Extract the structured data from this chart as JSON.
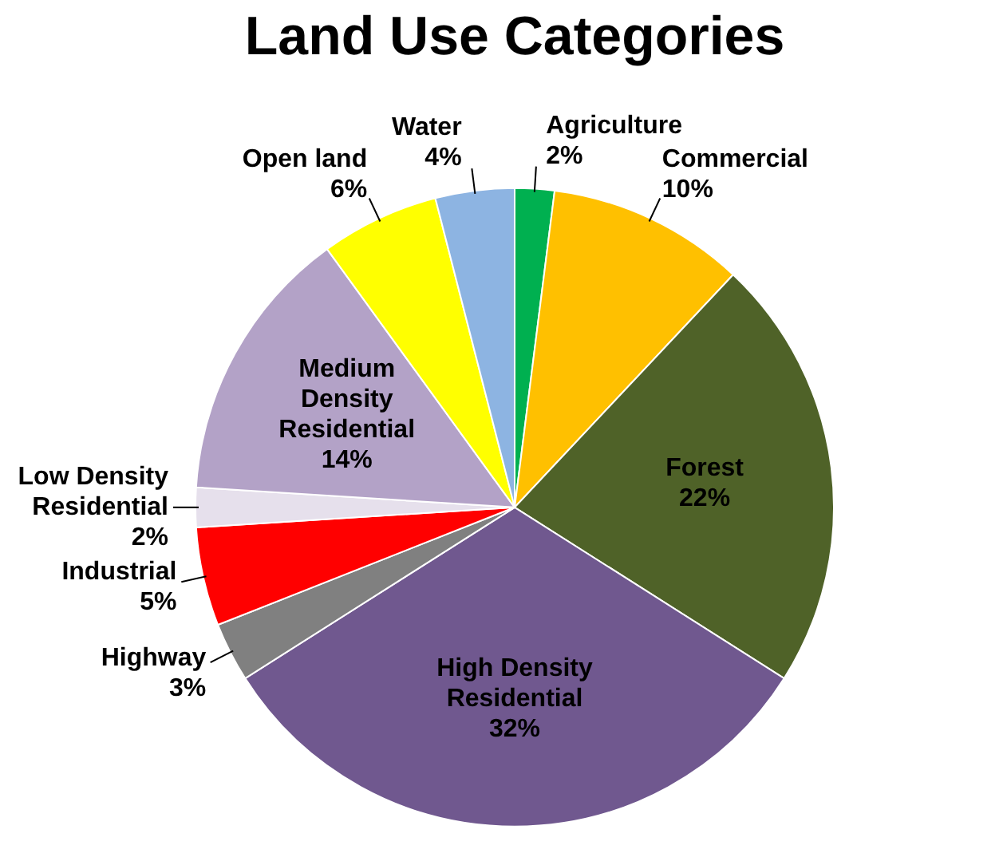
{
  "chart_data": {
    "type": "pie",
    "title": "Land Use Categories",
    "categories": [
      "Agriculture",
      "Commercial",
      "Forest",
      "High Density Residential",
      "Highway",
      "Industrial",
      "Low Density Residential",
      "Medium Density Residential",
      "Open land",
      "Water"
    ],
    "values": [
      2,
      10,
      22,
      32,
      3,
      5,
      2,
      14,
      6,
      4
    ],
    "value_labels": [
      "2%",
      "10%",
      "22%",
      "32%",
      "3%",
      "5%",
      "2%",
      "14%",
      "6%",
      "4%"
    ],
    "colors": [
      "#00b050",
      "#ffc000",
      "#4f6228",
      "#70588f",
      "#808080",
      "#ff0000",
      "#e6e0ec",
      "#b3a2c7",
      "#ffff00",
      "#8db4e2"
    ],
    "legend": false
  }
}
